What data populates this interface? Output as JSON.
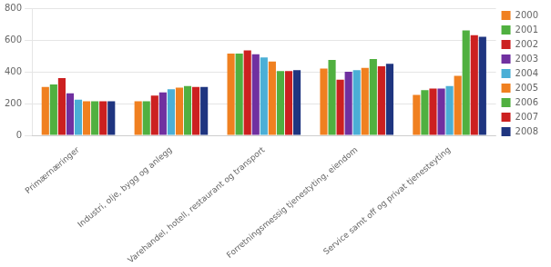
{
  "chart_data": {
    "type": "bar",
    "categories": [
      "Primærnæringer",
      "Industri, olje, bygg og anlegg",
      "Varehandel, hotell, restaurant og transport",
      "Forretningsmessig tjenestyting, eiendom",
      "Service samt off og privat tjenesteyting"
    ],
    "series": [
      {
        "name": "2000",
        "color": "#F08020",
        "values": [
          305,
          215,
          515,
          420,
          255
        ]
      },
      {
        "name": "2001",
        "color": "#50B040",
        "values": [
          320,
          215,
          515,
          475,
          285
        ]
      },
      {
        "name": "2002",
        "color": "#CC2020",
        "values": [
          360,
          250,
          535,
          350,
          295
        ]
      },
      {
        "name": "2003",
        "color": "#7030A0",
        "values": [
          265,
          270,
          510,
          400,
          295
        ]
      },
      {
        "name": "2004",
        "color": "#4BAFD6",
        "values": [
          225,
          290,
          490,
          410,
          310
        ]
      },
      {
        "name": "2005",
        "color": "#F08020",
        "values": [
          215,
          300,
          465,
          425,
          375
        ]
      },
      {
        "name": "2006",
        "color": "#50B040",
        "values": [
          215,
          310,
          405,
          480,
          660
        ]
      },
      {
        "name": "2007",
        "color": "#CC2020",
        "values": [
          215,
          305,
          405,
          435,
          630
        ]
      },
      {
        "name": "2008",
        "color": "#1F3580",
        "values": [
          215,
          305,
          410,
          450,
          620
        ]
      }
    ],
    "ylim": [
      0,
      800
    ],
    "yticks": [
      0,
      200,
      400,
      600,
      800
    ],
    "grid": true,
    "legend": "right"
  }
}
